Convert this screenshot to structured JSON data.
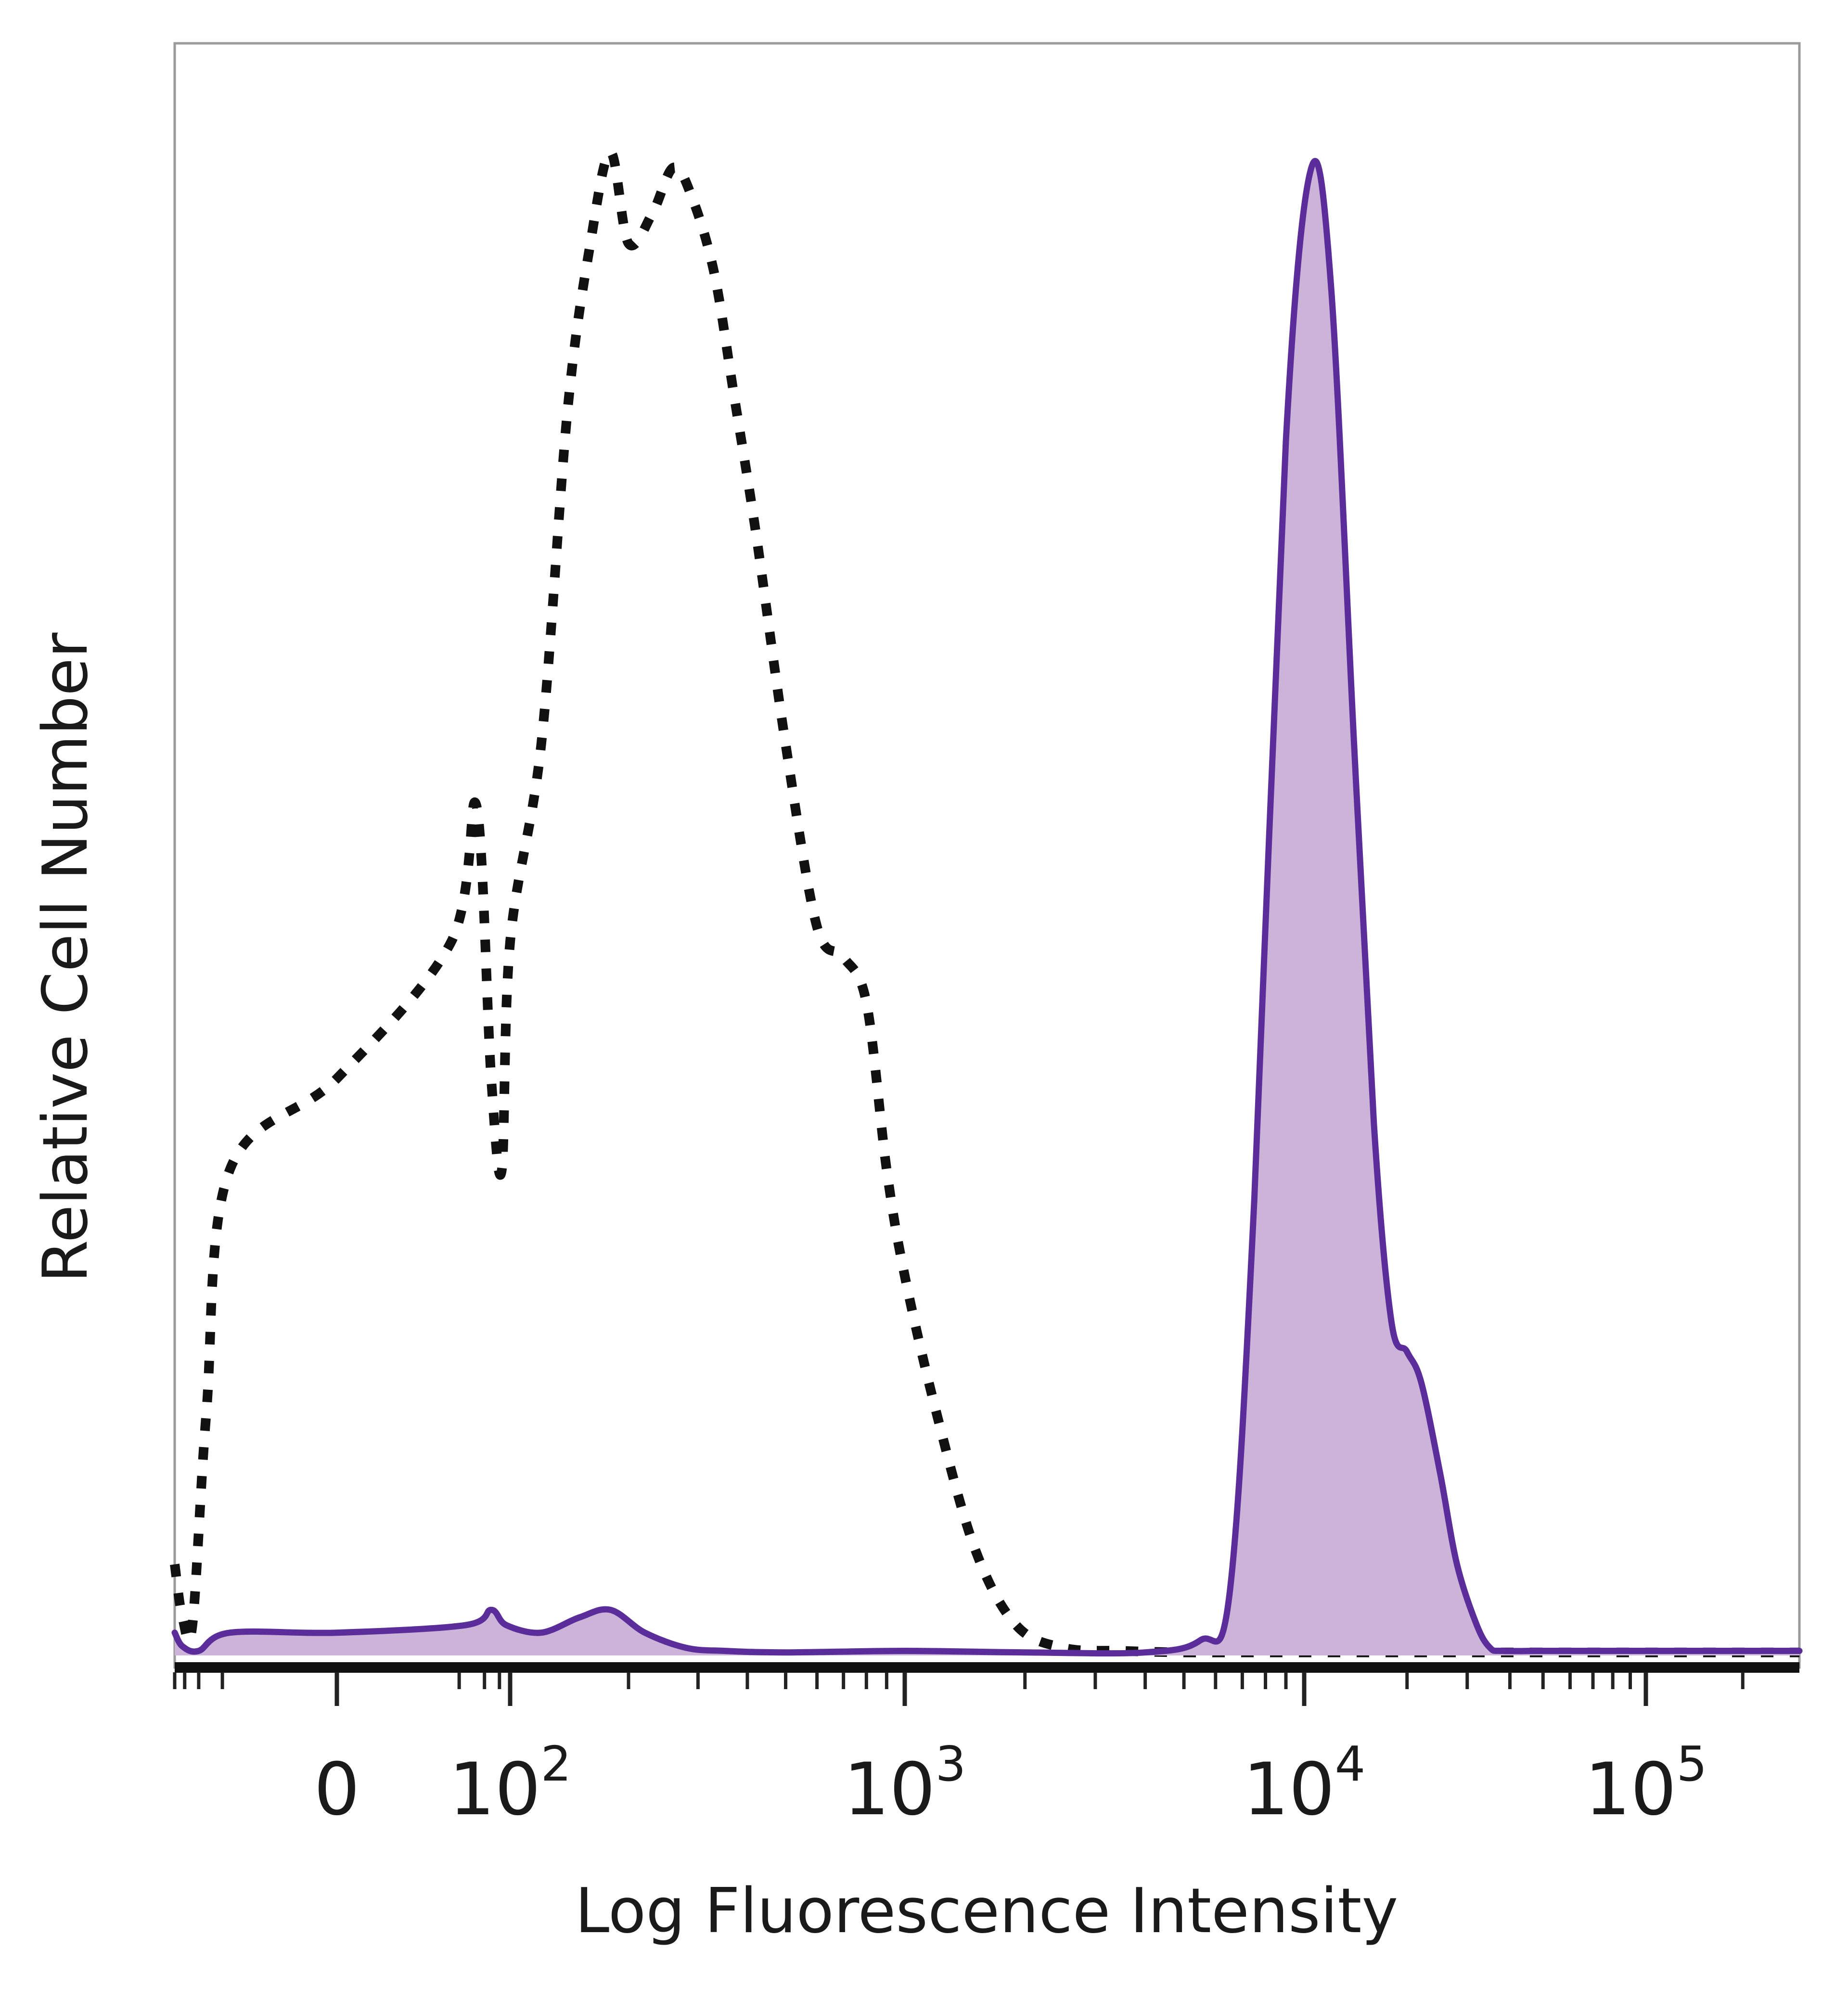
{
  "chart_data": {
    "type": "area",
    "title": "",
    "xlabel": "Log Fluorescence Intensity",
    "ylabel": "Relative Cell Number",
    "x_scale": "biexponential",
    "xlim": [
      -100,
      300000
    ],
    "ylim": [
      0,
      100
    ],
    "grid": false,
    "legend": "none",
    "x_ticks": [
      {
        "value": 0,
        "base": "0",
        "exp": ""
      },
      {
        "value": 100,
        "base": "10",
        "exp": "2"
      },
      {
        "value": 1000,
        "base": "10",
        "exp": "3"
      },
      {
        "value": 10000,
        "base": "10",
        "exp": "4"
      },
      {
        "value": 100000,
        "base": "10",
        "exp": "5"
      }
    ],
    "series": [
      {
        "style": "dotted",
        "color": "#111111",
        "filled": false,
        "x": [
          -100,
          -80,
          -60,
          -40,
          -20,
          0,
          20,
          40,
          60,
          80,
          100,
          120,
          140,
          160,
          180,
          200,
          230,
          260,
          290,
          330,
          370,
          420,
          500,
          600,
          700,
          800,
          900,
          1000,
          1200,
          1500,
          1900,
          2500,
          3500,
          5000,
          7000,
          10000,
          20000,
          40000,
          100000,
          300000
        ],
        "y": [
          6,
          2.5,
          2,
          16,
          32,
          38,
          47,
          56,
          38,
          32,
          47,
          60,
          82,
          93,
          99,
          93,
          95,
          98,
          96,
          91,
          83,
          74,
          60,
          48,
          46,
          43,
          32,
          25,
          16,
          7,
          2,
          0.5,
          0.3,
          0.2,
          0.2,
          0.2,
          0.2,
          0.2,
          0.2,
          0.2
        ]
      },
      {
        "style": "solid",
        "color": "#5b2d9a",
        "fill": "#cbb4d8",
        "filled": true,
        "x": [
          -100,
          -80,
          -50,
          -20,
          0,
          30,
          60,
          90,
          120,
          150,
          180,
          220,
          280,
          350,
          500,
          1000,
          2000,
          4000,
          5500,
          6500,
          7500,
          9000,
          10500,
          12000,
          14000,
          16000,
          18000,
          20000,
          22000,
          25000,
          28000,
          32000,
          35000,
          38000,
          50000,
          100000,
          300000
        ],
        "y": [
          1.5,
          0.6,
          0.3,
          1.5,
          1.5,
          2,
          3,
          2,
          1.5,
          2.5,
          3,
          1.5,
          0.5,
          0.3,
          0.2,
          0.3,
          0.2,
          0.2,
          1,
          4,
          30,
          80,
          98,
          90,
          60,
          35,
          22,
          20,
          18,
          12,
          6,
          2,
          0.5,
          0.3,
          0.3,
          0.3,
          0.3
        ]
      }
    ]
  }
}
